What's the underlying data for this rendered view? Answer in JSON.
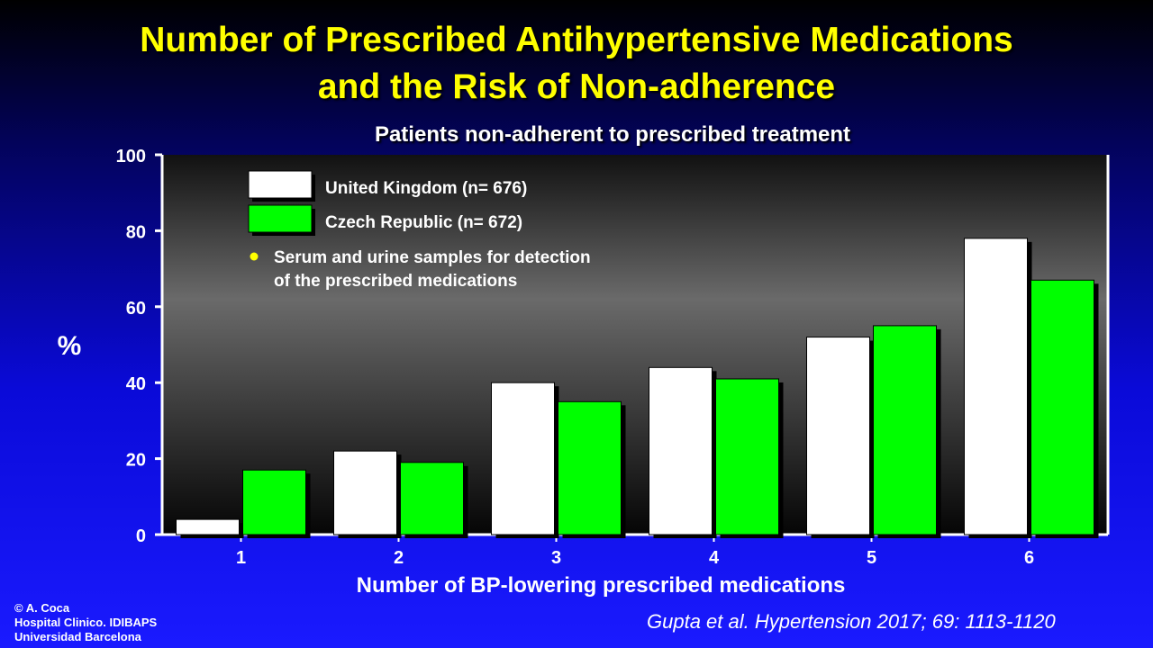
{
  "title_line1": "Number of Prescribed Antihypertensive Medications",
  "title_line2": "and the Risk of Non-adherence",
  "chart_data": {
    "type": "bar",
    "title": "Patients non-adherent to prescribed treatment",
    "xlabel": "Number of BP-lowering prescribed medications",
    "ylabel": "%",
    "ylim": [
      0,
      100
    ],
    "yticks": [
      0,
      20,
      40,
      60,
      80,
      100
    ],
    "categories": [
      "1",
      "2",
      "3",
      "4",
      "5",
      "6"
    ],
    "series": [
      {
        "name": "United Kingdom (n= 676)",
        "color": "#ffffff",
        "values": [
          4,
          22,
          40,
          44,
          52,
          78
        ]
      },
      {
        "name": "Czech Republic (n= 672)",
        "color": "#00ff00",
        "values": [
          17,
          19,
          35,
          41,
          55,
          67
        ]
      }
    ],
    "note_line1": "Serum and urine samples for detection",
    "note_line2": "of the prescribed medications",
    "grid": false,
    "legend_position": "top-left"
  },
  "footer": {
    "line1": "© A. Coca",
    "line2": "Hospital Clinico. IDIBAPS",
    "line3": "Universidad Barcelona"
  },
  "citation": "Gupta et al. Hypertension 2017; 69: 1113-1120"
}
